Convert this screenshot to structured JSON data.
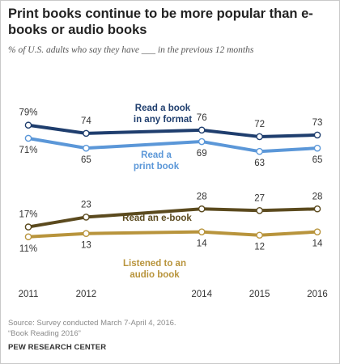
{
  "title": "Print books continue to be more popular than e-books or audio books",
  "subtitle": "% of U.S. adults who say they have ___ in the previous 12 months",
  "source_lines": [
    "Source: Survey conducted March 7-April 4, 2016.",
    "“Book Reading 2016”"
  ],
  "org": "PEW RESEARCH CENTER",
  "chart_data": {
    "type": "line",
    "x": [
      2011,
      2012,
      2014,
      2015,
      2016
    ],
    "x_labels": [
      "2011",
      "2012",
      "2014",
      "2015",
      "2016"
    ],
    "y_unit": "%",
    "series": [
      {
        "name": "Read a book in any format",
        "label_lines": [
          "Read a book",
          "in any format"
        ],
        "values": [
          79,
          74,
          76,
          72,
          73
        ],
        "value_labels": [
          "79%",
          "74",
          "76",
          "72",
          "73"
        ],
        "color": "#1f3e6e"
      },
      {
        "name": "Read a print book",
        "label_lines": [
          "Read a",
          "print book"
        ],
        "values": [
          71,
          65,
          69,
          63,
          65
        ],
        "value_labels": [
          "71%",
          "65",
          "69",
          "63",
          "65"
        ],
        "color": "#5b97d8"
      },
      {
        "name": "Read an e-book",
        "label_lines": [
          "Read an e-book"
        ],
        "values": [
          17,
          23,
          28,
          27,
          28
        ],
        "value_labels": [
          "17%",
          "23",
          "28",
          "27",
          "28"
        ],
        "color": "#5b4a1e"
      },
      {
        "name": "Listened to an audio book",
        "label_lines": [
          "Listened to an",
          "audio book"
        ],
        "values": [
          11,
          13,
          14,
          12,
          14
        ],
        "value_labels": [
          "11%",
          "13",
          "14",
          "12",
          "14"
        ],
        "color": "#b8943c"
      }
    ],
    "grid": false,
    "legend": "inline labels"
  }
}
